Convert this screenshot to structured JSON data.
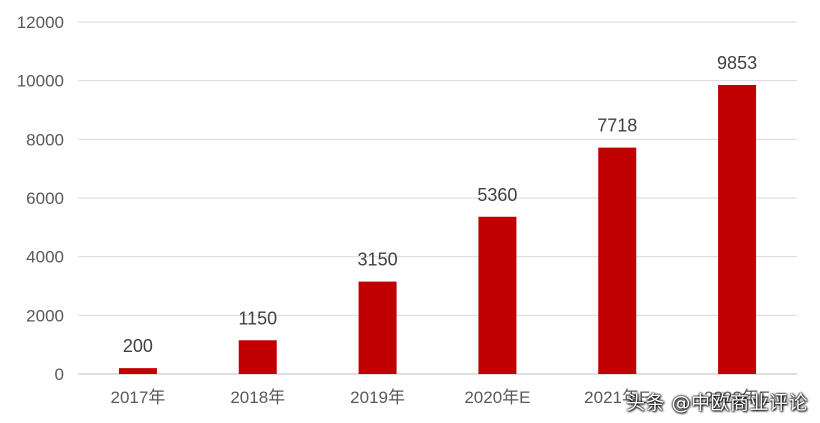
{
  "chart_data": {
    "type": "bar",
    "categories": [
      "2017年",
      "2018年",
      "2019年",
      "2020年E",
      "2021年E",
      "2022年E"
    ],
    "values": [
      200,
      1150,
      3150,
      5360,
      7718,
      9853
    ],
    "data_labels": [
      "200",
      "1150",
      "3150",
      "5360",
      "7718",
      "9853"
    ],
    "y_ticks": [
      0,
      2000,
      4000,
      6000,
      8000,
      10000,
      12000
    ],
    "ylim": [
      0,
      12000
    ],
    "grid": true,
    "legend": "none",
    "bar_color": "#C00000",
    "grid_color": "#D9D9D9"
  },
  "watermark": "头条 @中欧商业评论"
}
